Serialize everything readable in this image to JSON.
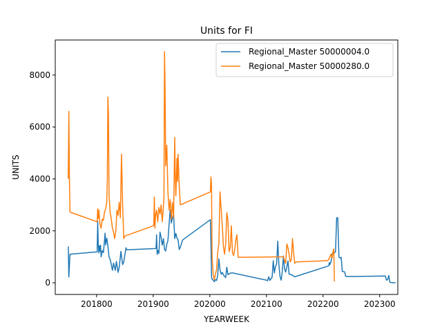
{
  "chart_data": {
    "type": "line",
    "title": "Units for FI",
    "xlabel": "YEARWEEK",
    "ylabel": "UNITS",
    "xlim": [
      201727,
      202332
    ],
    "ylim": [
      -450,
      9350
    ],
    "x_ticks": [
      201800,
      201900,
      202000,
      202100,
      202200,
      202300
    ],
    "x_tick_labels": [
      "201800",
      "201900",
      "202000",
      "202100",
      "202200",
      "202300"
    ],
    "y_ticks": [
      0,
      2000,
      4000,
      6000,
      8000
    ],
    "y_tick_labels": [
      "0",
      "2000",
      "4000",
      "6000",
      "8000"
    ],
    "grid": false,
    "legend_position": "top-right",
    "series": [
      {
        "name": "Regional_Master 50000004.0",
        "color": "#1f77b4",
        "points": [
          [
            201750,
            1400
          ],
          [
            201751,
            220
          ],
          [
            201753,
            1100
          ],
          [
            201801,
            1190
          ],
          [
            201802,
            2370
          ],
          [
            201803,
            1450
          ],
          [
            201804,
            1150
          ],
          [
            201805,
            1420
          ],
          [
            201806,
            1220
          ],
          [
            201807,
            1450
          ],
          [
            201808,
            1000
          ],
          [
            201810,
            1240
          ],
          [
            201812,
            1160
          ],
          [
            201814,
            1630
          ],
          [
            201815,
            1910
          ],
          [
            201816,
            1460
          ],
          [
            201818,
            1720
          ],
          [
            201820,
            1410
          ],
          [
            201822,
            1000
          ],
          [
            201824,
            900
          ],
          [
            201826,
            700
          ],
          [
            201828,
            480
          ],
          [
            201830,
            760
          ],
          [
            201833,
            480
          ],
          [
            201835,
            820
          ],
          [
            201838,
            400
          ],
          [
            201840,
            600
          ],
          [
            201843,
            1210
          ],
          [
            201846,
            700
          ],
          [
            201848,
            800
          ],
          [
            201850,
            1080
          ],
          [
            201852,
            1350
          ],
          [
            201853,
            1270
          ],
          [
            201905,
            1320
          ],
          [
            201906,
            1850
          ],
          [
            201907,
            1090
          ],
          [
            201908,
            1250
          ],
          [
            201910,
            1130
          ],
          [
            201912,
            1950
          ],
          [
            201914,
            1750
          ],
          [
            201916,
            1450
          ],
          [
            201918,
            1700
          ],
          [
            201920,
            1290
          ],
          [
            201922,
            1220
          ],
          [
            201924,
            1480
          ],
          [
            201926,
            1620
          ],
          [
            201928,
            2240
          ],
          [
            201930,
            2800
          ],
          [
            201932,
            2300
          ],
          [
            201934,
            2500
          ],
          [
            201936,
            2650
          ],
          [
            201938,
            1700
          ],
          [
            201940,
            1900
          ],
          [
            201942,
            1720
          ],
          [
            201944,
            1650
          ],
          [
            201946,
            1280
          ],
          [
            201948,
            1380
          ],
          [
            201952,
            1650
          ],
          [
            202001,
            2430
          ],
          [
            202002,
            1500
          ],
          [
            202003,
            230
          ],
          [
            202004,
            140
          ],
          [
            202006,
            100
          ],
          [
            202008,
            40
          ],
          [
            202010,
            120
          ],
          [
            202012,
            90
          ],
          [
            202014,
            300
          ],
          [
            202016,
            920
          ],
          [
            202018,
            500
          ],
          [
            202020,
            330
          ],
          [
            202022,
            400
          ],
          [
            202025,
            270
          ],
          [
            202028,
            200
          ],
          [
            202030,
            600
          ],
          [
            202032,
            310
          ],
          [
            202036,
            370
          ],
          [
            202040,
            380
          ],
          [
            202100,
            100
          ],
          [
            202102,
            80
          ],
          [
            202104,
            230
          ],
          [
            202106,
            90
          ],
          [
            202110,
            210
          ],
          [
            202112,
            850
          ],
          [
            202114,
            380
          ],
          [
            202116,
            640
          ],
          [
            202118,
            720
          ],
          [
            202120,
            1600
          ],
          [
            202122,
            700
          ],
          [
            202124,
            240
          ],
          [
            202126,
            100
          ],
          [
            202128,
            440
          ],
          [
            202130,
            1030
          ],
          [
            202132,
            540
          ],
          [
            202134,
            410
          ],
          [
            202136,
            610
          ],
          [
            202138,
            840
          ],
          [
            202140,
            340
          ],
          [
            202145,
            300
          ],
          [
            202150,
            230
          ],
          [
            202210,
            650
          ],
          [
            202211,
            780
          ],
          [
            202212,
            700
          ],
          [
            202214,
            800
          ],
          [
            202216,
            1100
          ],
          [
            202218,
            1200
          ],
          [
            202220,
            1150
          ],
          [
            202222,
            1200
          ],
          [
            202224,
            2500
          ],
          [
            202226,
            2500
          ],
          [
            202228,
            1000
          ],
          [
            202230,
            950
          ],
          [
            202232,
            980
          ],
          [
            202234,
            440
          ],
          [
            202236,
            430
          ],
          [
            202238,
            420
          ],
          [
            202240,
            250
          ],
          [
            202242,
            240
          ],
          [
            202310,
            260
          ],
          [
            202312,
            100
          ],
          [
            202314,
            120
          ],
          [
            202316,
            280
          ],
          [
            202318,
            20
          ],
          [
            202322,
            0
          ],
          [
            202328,
            0
          ]
        ]
      },
      {
        "name": "Regional_Master 50000280.0",
        "color": "#ff7f0e",
        "points": [
          [
            201750,
            4000
          ],
          [
            201751,
            6600
          ],
          [
            201752,
            4050
          ],
          [
            201753,
            2720
          ],
          [
            201801,
            2350
          ],
          [
            201802,
            2850
          ],
          [
            201803,
            2480
          ],
          [
            201804,
            2800
          ],
          [
            201806,
            2250
          ],
          [
            201808,
            2100
          ],
          [
            201810,
            2450
          ],
          [
            201812,
            2400
          ],
          [
            201814,
            2720
          ],
          [
            201816,
            2850
          ],
          [
            201818,
            3100
          ],
          [
            201819,
            4000
          ],
          [
            201820,
            7150
          ],
          [
            201821,
            6500
          ],
          [
            201822,
            3400
          ],
          [
            201824,
            2700
          ],
          [
            201826,
            2450
          ],
          [
            201828,
            2100
          ],
          [
            201830,
            1950
          ],
          [
            201832,
            1700
          ],
          [
            201834,
            2000
          ],
          [
            201836,
            2800
          ],
          [
            201838,
            2600
          ],
          [
            201840,
            3100
          ],
          [
            201842,
            2500
          ],
          [
            201844,
            4950
          ],
          [
            201846,
            3000
          ],
          [
            201848,
            1700
          ],
          [
            201850,
            1800
          ],
          [
            201901,
            2200
          ],
          [
            201902,
            3300
          ],
          [
            201903,
            2100
          ],
          [
            201904,
            2550
          ],
          [
            201906,
            2800
          ],
          [
            201908,
            2350
          ],
          [
            201910,
            2900
          ],
          [
            201912,
            2650
          ],
          [
            201914,
            3000
          ],
          [
            201916,
            2350
          ],
          [
            201918,
            2900
          ],
          [
            201919,
            3300
          ],
          [
            201920,
            8900
          ],
          [
            201921,
            7500
          ],
          [
            201922,
            4500
          ],
          [
            201924,
            5300
          ],
          [
            201926,
            3500
          ],
          [
            201928,
            2800
          ],
          [
            201930,
            3200
          ],
          [
            201932,
            2450
          ],
          [
            201934,
            3100
          ],
          [
            201936,
            2500
          ],
          [
            201938,
            5600
          ],
          [
            201939,
            4100
          ],
          [
            201940,
            3350
          ],
          [
            201942,
            4800
          ],
          [
            201943,
            3900
          ],
          [
            201944,
            4950
          ],
          [
            201946,
            3700
          ],
          [
            201948,
            3000
          ],
          [
            202001,
            3500
          ],
          [
            202002,
            4080
          ],
          [
            202003,
            3800
          ],
          [
            202004,
            1000
          ],
          [
            202006,
            300
          ],
          [
            202008,
            120
          ],
          [
            202010,
            350
          ],
          [
            202012,
            500
          ],
          [
            202014,
            1200
          ],
          [
            202016,
            1500
          ],
          [
            202018,
            3500
          ],
          [
            202020,
            2850
          ],
          [
            202022,
            2200
          ],
          [
            202024,
            1400
          ],
          [
            202026,
            1100
          ],
          [
            202028,
            1500
          ],
          [
            202030,
            2700
          ],
          [
            202032,
            2400
          ],
          [
            202034,
            1200
          ],
          [
            202036,
            1350
          ],
          [
            202038,
            2200
          ],
          [
            202040,
            1150
          ],
          [
            202042,
            1050
          ],
          [
            202044,
            1300
          ],
          [
            202046,
            1650
          ],
          [
            202048,
            1850
          ],
          [
            202050,
            980
          ],
          [
            202130,
            1000
          ],
          [
            202132,
            850
          ],
          [
            202134,
            750
          ],
          [
            202136,
            1500
          ],
          [
            202138,
            1350
          ],
          [
            202140,
            1100
          ],
          [
            202142,
            800
          ],
          [
            202144,
            900
          ],
          [
            202146,
            1700
          ],
          [
            202148,
            1150
          ],
          [
            202150,
            750
          ],
          [
            202152,
            800
          ],
          [
            202208,
            850
          ],
          [
            202210,
            900
          ],
          [
            202212,
            1000
          ],
          [
            202214,
            1100
          ],
          [
            202216,
            950
          ],
          [
            202218,
            1250
          ],
          [
            202219,
            1300
          ],
          [
            202220,
            50
          ]
        ]
      }
    ]
  }
}
